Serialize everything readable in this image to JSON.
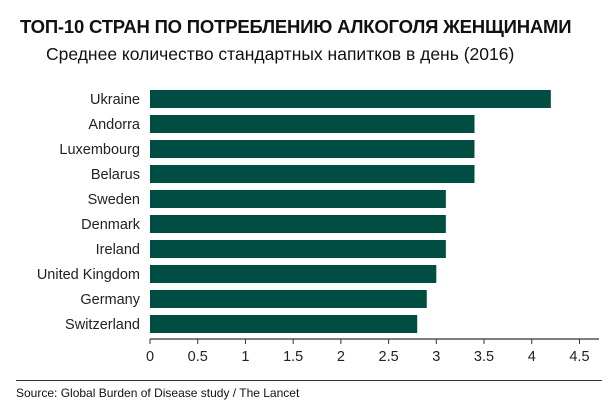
{
  "title": "ТОП-10 СТРАН ПО ПОТРЕБЛЕНИЮ АЛКОГОЛЯ ЖЕНЩИНАМИ",
  "subtitle": "Среднее количество стандартных напитков в день (2016)",
  "source": "Source: Global Burden of Disease study / The Lancet",
  "colors": {
    "bar": "#004d44",
    "axis": "#333333",
    "grid": "#d9d9d9"
  },
  "chart_data": {
    "type": "bar",
    "orientation": "horizontal",
    "title": "ТОП-10 СТРАН ПО ПОТРЕБЛЕНИЮ АЛКОГОЛЯ ЖЕНЩИНАМИ",
    "subtitle": "Среднее количество стандартных напитков в день (2016)",
    "categories": [
      "Ukraine",
      "Andorra",
      "Luxembourg",
      "Belarus",
      "Sweden",
      "Denmark",
      "Ireland",
      "United Kingdom",
      "Germany",
      "Switzerland"
    ],
    "values": [
      4.2,
      3.4,
      3.4,
      3.4,
      3.1,
      3.1,
      3.1,
      3.0,
      2.9,
      2.8
    ],
    "xlim": [
      0,
      4.6
    ],
    "xticks": [
      "0",
      "0.5",
      "1",
      "1.5",
      "2",
      "2.5",
      "3",
      "3.5",
      "4",
      "4.5"
    ],
    "xlabel": "",
    "ylabel": "",
    "grid": false,
    "legend": "none"
  }
}
